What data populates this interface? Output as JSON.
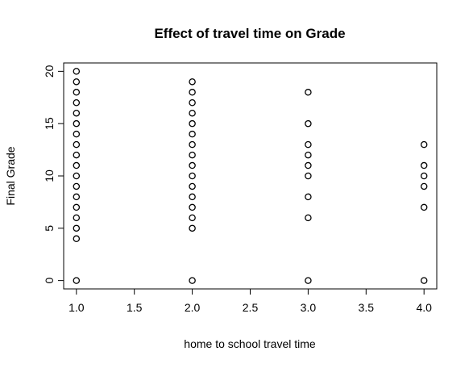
{
  "chart_data": {
    "type": "scatter",
    "title": "Effect of travel time on Grade",
    "xlabel": "home to school travel time",
    "ylabel": "Final Grade",
    "xlim": [
      0.89,
      4.11
    ],
    "ylim": [
      -0.8,
      20.8
    ],
    "xticks": [
      1.0,
      1.5,
      2.0,
      2.5,
      3.0,
      3.5,
      4.0
    ],
    "xtick_labels": [
      "1.0",
      "1.5",
      "2.0",
      "2.5",
      "3.0",
      "3.5",
      "4.0"
    ],
    "yticks": [
      0,
      5,
      10,
      15,
      20
    ],
    "ytick_labels": [
      "0",
      "5",
      "10",
      "15",
      "20"
    ],
    "grid": false,
    "marker": "open-circle",
    "points": [
      {
        "x": 1,
        "y": 0
      },
      {
        "x": 1,
        "y": 4
      },
      {
        "x": 1,
        "y": 5
      },
      {
        "x": 1,
        "y": 6
      },
      {
        "x": 1,
        "y": 7
      },
      {
        "x": 1,
        "y": 8
      },
      {
        "x": 1,
        "y": 9
      },
      {
        "x": 1,
        "y": 10
      },
      {
        "x": 1,
        "y": 11
      },
      {
        "x": 1,
        "y": 12
      },
      {
        "x": 1,
        "y": 13
      },
      {
        "x": 1,
        "y": 14
      },
      {
        "x": 1,
        "y": 15
      },
      {
        "x": 1,
        "y": 16
      },
      {
        "x": 1,
        "y": 17
      },
      {
        "x": 1,
        "y": 18
      },
      {
        "x": 1,
        "y": 19
      },
      {
        "x": 1,
        "y": 20
      },
      {
        "x": 2,
        "y": 0
      },
      {
        "x": 2,
        "y": 5
      },
      {
        "x": 2,
        "y": 6
      },
      {
        "x": 2,
        "y": 7
      },
      {
        "x": 2,
        "y": 8
      },
      {
        "x": 2,
        "y": 9
      },
      {
        "x": 2,
        "y": 10
      },
      {
        "x": 2,
        "y": 11
      },
      {
        "x": 2,
        "y": 12
      },
      {
        "x": 2,
        "y": 13
      },
      {
        "x": 2,
        "y": 14
      },
      {
        "x": 2,
        "y": 15
      },
      {
        "x": 2,
        "y": 16
      },
      {
        "x": 2,
        "y": 17
      },
      {
        "x": 2,
        "y": 18
      },
      {
        "x": 2,
        "y": 19
      },
      {
        "x": 3,
        "y": 0
      },
      {
        "x": 3,
        "y": 6
      },
      {
        "x": 3,
        "y": 8
      },
      {
        "x": 3,
        "y": 10
      },
      {
        "x": 3,
        "y": 11
      },
      {
        "x": 3,
        "y": 12
      },
      {
        "x": 3,
        "y": 13
      },
      {
        "x": 3,
        "y": 15
      },
      {
        "x": 3,
        "y": 18
      },
      {
        "x": 4,
        "y": 0
      },
      {
        "x": 4,
        "y": 7
      },
      {
        "x": 4,
        "y": 9
      },
      {
        "x": 4,
        "y": 10
      },
      {
        "x": 4,
        "y": 11
      },
      {
        "x": 4,
        "y": 13
      }
    ]
  }
}
